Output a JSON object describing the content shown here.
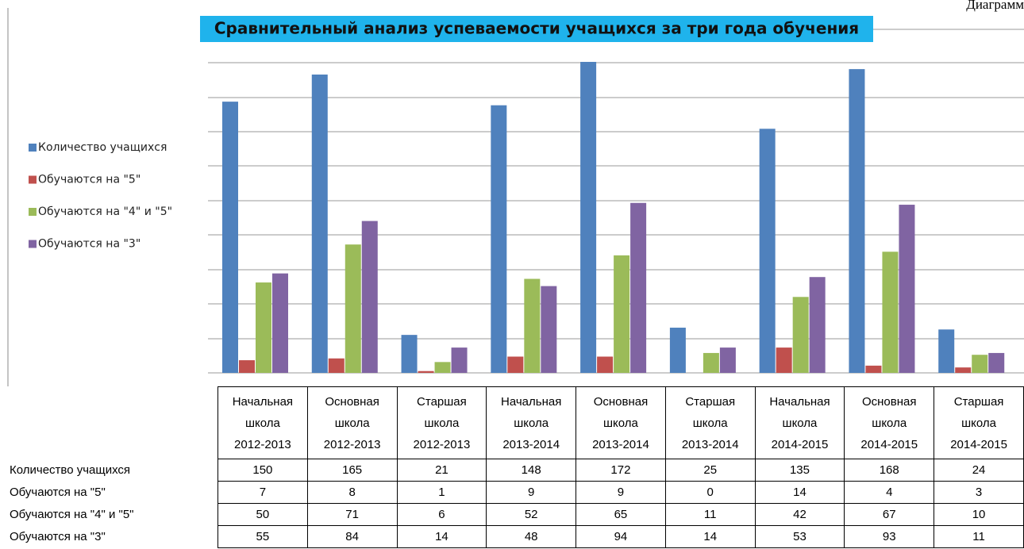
{
  "corner_text": "Диаграмм",
  "chart_data": {
    "type": "bar",
    "title": "Сравнительный анализ успеваемости учащихся за три года обучения",
    "categories": [
      "Начальная\nшкола\n2012-2013",
      "Основная\nшкола\n2012-2013",
      "Старшая\nшкола\n2012-2013",
      "Начальная\nшкола\n2013-2014",
      "Основная\nшкола\n2013-2014",
      "Старшая\nшкола\n2013-2014",
      "Начальная\nшкола\n2014-2015",
      "Основная\nшкола\n2014-2015",
      "Старшая\nшкола\n2014-2015"
    ],
    "series": [
      {
        "name": "Количество учащихся",
        "color": "#4f81bd",
        "values": [
          150,
          165,
          21,
          148,
          172,
          25,
          135,
          168,
          24
        ]
      },
      {
        "name": "Обучаются на \"5\"",
        "color": "#c0504d",
        "values": [
          7,
          8,
          1,
          9,
          9,
          0,
          14,
          4,
          3
        ]
      },
      {
        "name": "Обучаются на \"4\" и \"5\"",
        "color": "#9bbb59",
        "values": [
          50,
          71,
          6,
          52,
          65,
          11,
          42,
          67,
          10
        ]
      },
      {
        "name": "Обучаются на \"3\"",
        "color": "#8064a2",
        "values": [
          55,
          84,
          14,
          48,
          94,
          14,
          53,
          93,
          11
        ]
      }
    ],
    "legend": "left",
    "grid": true
  }
}
